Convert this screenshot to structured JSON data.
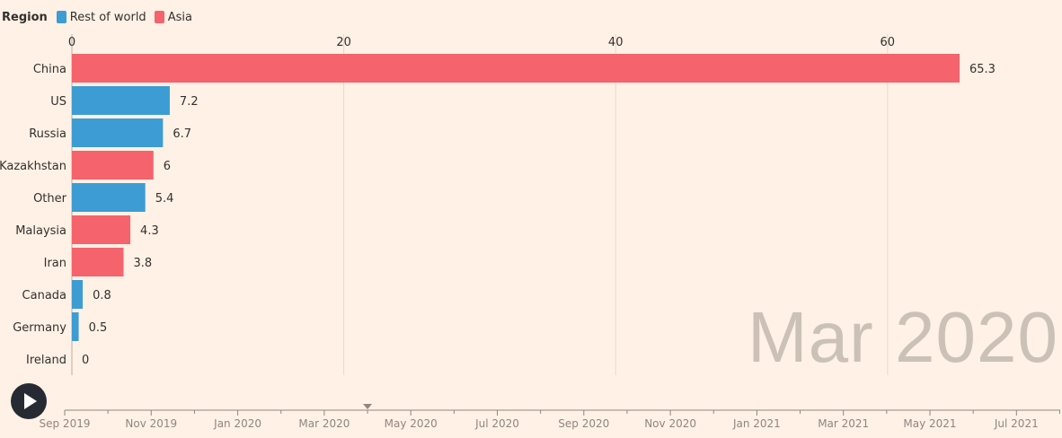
{
  "legend": {
    "title": "Region",
    "items": [
      {
        "label": "Rest of world",
        "color": "#3d9cd3"
      },
      {
        "label": "Asia",
        "color": "#f5636d"
      }
    ]
  },
  "chart_data": {
    "type": "bar",
    "orientation": "horizontal",
    "categories": [
      "China",
      "US",
      "Russia",
      "Kazakhstan",
      "Other",
      "Malaysia",
      "Iran",
      "Canada",
      "Germany",
      "Ireland"
    ],
    "values": [
      65.3,
      7.2,
      6.7,
      6,
      5.4,
      4.3,
      3.8,
      0.8,
      0.5,
      0
    ],
    "value_labels": [
      "65.3",
      "7.2",
      "6.7",
      "6",
      "5.4",
      "4.3",
      "3.8",
      "0.8",
      "0.5",
      "0"
    ],
    "regions": [
      "Asia",
      "Rest of world",
      "Rest of world",
      "Asia",
      "Rest of world",
      "Asia",
      "Asia",
      "Rest of world",
      "Rest of world",
      "Rest of world"
    ],
    "x_ticks": [
      0,
      20,
      40,
      60
    ],
    "xlim": [
      0,
      65.3
    ],
    "grid": true,
    "legend_position": "top-left",
    "current_frame": "Mar 2020"
  },
  "timeline": {
    "labels": [
      "Sep 2019",
      "Nov 2019",
      "Jan 2020",
      "Mar 2020",
      "May 2020",
      "Jul 2020",
      "Sep 2020",
      "Nov 2020",
      "Jan 2021",
      "Mar 2021",
      "May 2021",
      "Jul 2021"
    ],
    "current_month_index": 7,
    "months_total": 23
  },
  "controls": {
    "play_label": "Play"
  }
}
